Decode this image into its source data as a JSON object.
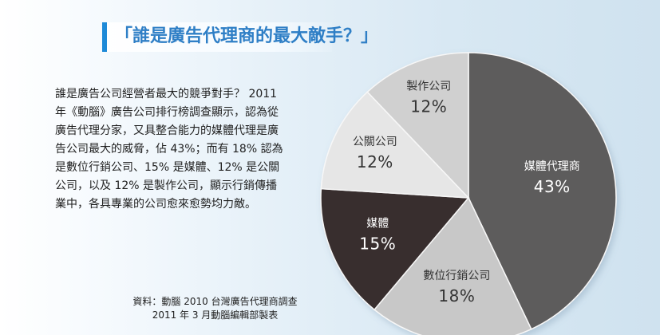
{
  "header": {
    "title": "「誰是廣告代理商的最大敵手？」"
  },
  "body": {
    "text": "誰是廣告公司經營者最大的競爭對手？ 2011\n年《動腦》廣告公司排行榜調查顯示，認為從\n廣告代理分家，又具整合能力的媒體代理是廣\n告公司最大的威脅，佔 43%；而有 18% 認為\n是數位行銷公司、15% 是媒體、12% 是公關\n公司，以及 12% 是製作公司，顯示行銷傳播\n業中，各具專業的公司愈來愈勢均力敵。"
  },
  "source": {
    "text": "資料：動腦 2010 台灣廣告代理商調查\n2011 年 3 月動腦編輯部製表"
  },
  "chart_data": {
    "type": "pie",
    "slices": [
      {
        "label": "媒體代理商",
        "value": 43,
        "display": "43%",
        "color": "#5d5b5b",
        "text_color": "#ffffff"
      },
      {
        "label": "數位行銷公司",
        "value": 18,
        "display": "18%",
        "color": "#c8c8c8",
        "text_color": "#333333"
      },
      {
        "label": "媒體",
        "value": 15,
        "display": "15%",
        "color": "#382e2e",
        "text_color": "#ffffff"
      },
      {
        "label": "公關公司",
        "value": 12,
        "display": "12%",
        "color": "#e6e6e6",
        "text_color": "#333333"
      },
      {
        "label": "製作公司",
        "value": 12,
        "display": "12%",
        "color": "#d0d0d0",
        "text_color": "#333333"
      }
    ]
  }
}
